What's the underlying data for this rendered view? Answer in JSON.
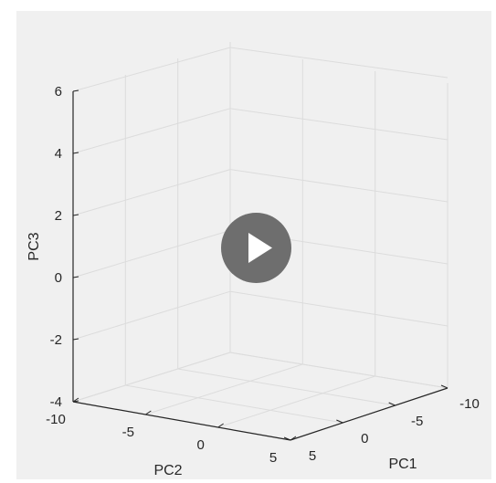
{
  "chart_data": {
    "type": "scatter",
    "projection": "3d",
    "grid": true,
    "series": [],
    "x": {
      "label": "PC1",
      "ticks": [
        5,
        0,
        -5,
        -10
      ],
      "tick_labels": [
        "5",
        "0",
        "-5",
        "-10"
      ],
      "range": [
        5,
        -10
      ]
    },
    "y": {
      "label": "PC2",
      "ticks": [
        -10,
        -5,
        0,
        5
      ],
      "tick_labels": [
        "-10",
        "-5",
        "0",
        "5"
      ],
      "range": [
        -10,
        5
      ]
    },
    "z": {
      "label": "PC3",
      "ticks": [
        6,
        4,
        2,
        0,
        -2,
        -4
      ],
      "tick_labels": [
        "6",
        "4",
        "2",
        "0",
        "-2",
        "-4"
      ],
      "range": [
        -4,
        6
      ]
    }
  },
  "video_overlay": {
    "icon": "play-icon",
    "color": "#6e6e6e"
  }
}
